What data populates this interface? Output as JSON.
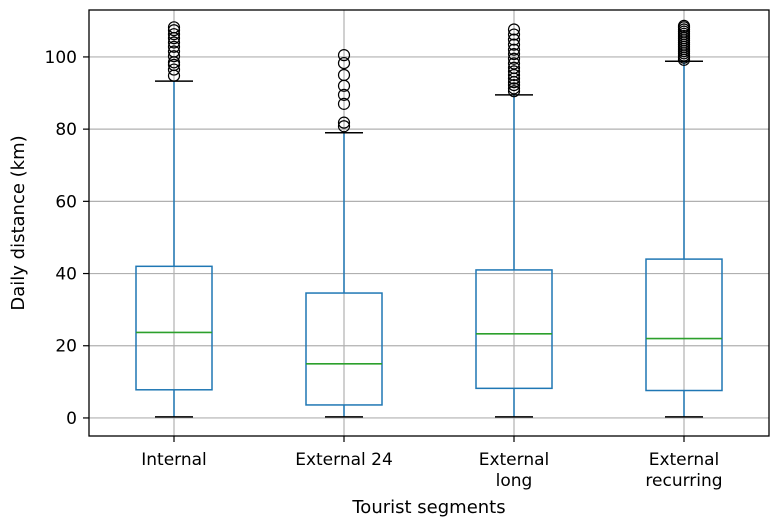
{
  "chart_data": {
    "type": "boxplot",
    "title": "",
    "xlabel": "Tourist segments",
    "ylabel": "Daily distance (km)",
    "ylim": [
      -5,
      113
    ],
    "yticks": [
      0,
      20,
      40,
      60,
      80,
      100
    ],
    "ytick_labels": [
      "0",
      "20",
      "40",
      "60",
      "80",
      "100"
    ],
    "grid": true,
    "colors": {
      "box": "#1f77b4",
      "median": "#2ca02c",
      "whisker_cap": "#000000",
      "grid": "#b0b0b0",
      "flier": "#000000"
    },
    "categories": [
      [
        "Internal"
      ],
      [
        "External 24"
      ],
      [
        "External",
        "long"
      ],
      [
        "External",
        "recurring"
      ]
    ],
    "boxes": [
      {
        "whislo": 0.3,
        "q1": 7.8,
        "med": 23.7,
        "q3": 42.0,
        "whishi": 93.3,
        "fliers": [
          94.8,
          96.5,
          97.8,
          98.5,
          100.2,
          101.5,
          102.8,
          104.0,
          105.2,
          106.3,
          107.4,
          108.2
        ]
      },
      {
        "whislo": 0.3,
        "q1": 3.6,
        "med": 15.0,
        "q3": 34.6,
        "whishi": 79.0,
        "fliers": [
          80.8,
          81.8,
          87.0,
          89.5,
          92.0,
          95.0,
          98.3,
          100.5
        ]
      },
      {
        "whislo": 0.3,
        "q1": 8.2,
        "med": 23.3,
        "q3": 41.0,
        "whishi": 89.5,
        "fliers": [
          90.5,
          91.3,
          92.2,
          93.0,
          94.0,
          95.0,
          96.0,
          97.0,
          98.2,
          99.5,
          100.8,
          102.0,
          103.4,
          104.8,
          106.2,
          107.6
        ]
      },
      {
        "whislo": 0.3,
        "q1": 7.6,
        "med": 22.0,
        "q3": 44.0,
        "whishi": 98.8,
        "fliers": [
          99.2,
          99.8,
          100.4,
          101.0,
          101.6,
          102.2,
          102.8,
          103.4,
          104.0,
          104.6,
          105.2,
          105.8,
          106.4,
          107.0,
          107.6,
          108.2,
          108.6
        ]
      }
    ]
  }
}
